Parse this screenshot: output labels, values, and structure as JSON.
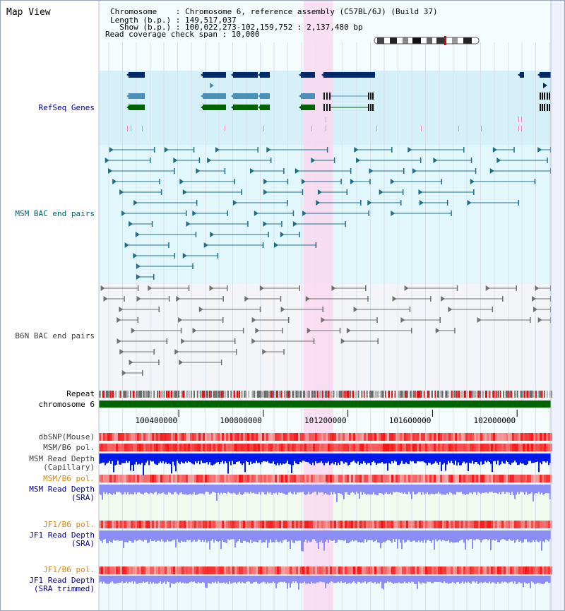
{
  "view": {
    "title": "Map View"
  },
  "header": {
    "chromosome_row": "Chromosome    : Chromosome 6, reference assembly (C57BL/6J) (Build 37)",
    "length_row": "Length (b.p.) : 149,517,037",
    "show_row": "  Show (b.p.) : 100,022,273-102,159,752 : 2,137,480 bp",
    "coverage_row": "Read coverage check span : 10,000"
  },
  "tracks": {
    "refseq": "RefSeq Genes",
    "msm_bac": "MSM BAC end pairs",
    "b6n_bac": "B6N BAC end pairs",
    "repeat": "Repeat",
    "chromosome": "chromosome 6",
    "dbsnp": "dbSNP(Mouse)",
    "msm_b6_pol": "MSM/B6 pol.",
    "msm_depth_cap_1": "MSM Read Depth",
    "msm_depth_cap_2": "(Capillary)",
    "msm_b6_pol_2": "MSM/B6 pol.",
    "msm_depth_sra_1": "MSM Read Depth",
    "msm_depth_sra_2": "(SRA)",
    "jf1_b6_pol": "JF1/B6 pol.",
    "jf1_depth_sra_1": "JF1 Read Depth",
    "jf1_depth_sra_2": "(SRA)",
    "jf1_b6_pol_2": "JF1/B6 pol.",
    "jf1_depth_trim_1": "JF1 Read Depth",
    "jf1_depth_trim_2": "(SRA trimmed)"
  },
  "axis": {
    "ticks": [
      {
        "bp": 100400000,
        "label": "100400000"
      },
      {
        "bp": 100800000,
        "label": "100800000"
      },
      {
        "bp": 101200000,
        "label": "101200000"
      },
      {
        "bp": 101600000,
        "label": "101600000"
      },
      {
        "bp": 102000000,
        "label": "102000000"
      }
    ],
    "start_bp": 100022273,
    "end_bp": 102159752
  },
  "highlight": {
    "start_bp": 100990000,
    "end_bp": 101130000,
    "color": "#fad8f0"
  },
  "colors": {
    "refseq_bg": "#d6f0fa",
    "msm_bg": "#e2f7fb",
    "b6n_bg": "#f4f5f8",
    "chromosome_bar": "#006400",
    "gene_dark": "#002a6a",
    "gene_mid": "#4a90b8",
    "gene_green": "#006400",
    "msm_bac": "#1c6e8a",
    "b6n_bac": "#707070",
    "depth_capillary": "#0018e8",
    "depth_sra": "#8c8cf5"
  }
}
